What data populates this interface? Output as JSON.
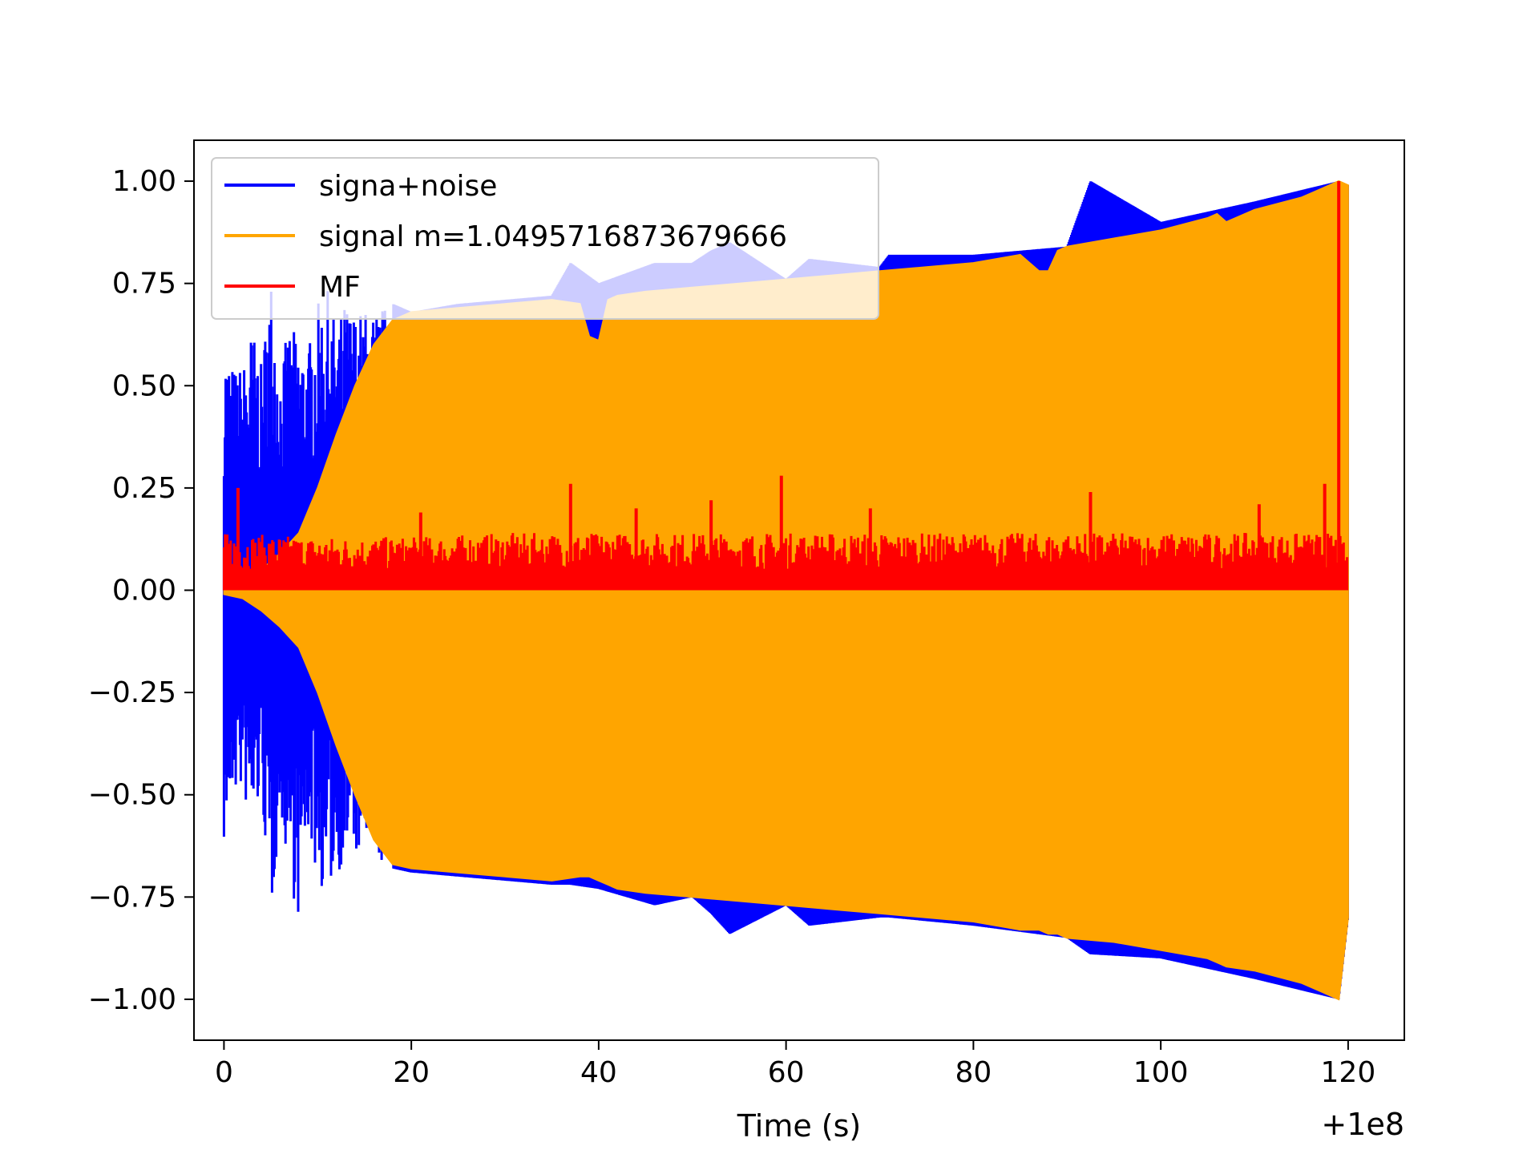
{
  "chart_data": {
    "type": "line",
    "title": "",
    "xlabel": "Time (s)",
    "ylabel": "",
    "x_offset_label": "+1e8",
    "xlim": [
      -3.2,
      126
    ],
    "ylim": [
      -1.1,
      1.1
    ],
    "x_ticks": [
      0,
      20,
      40,
      60,
      80,
      100,
      120
    ],
    "x_tick_labels": [
      "0",
      "20",
      "40",
      "60",
      "80",
      "100",
      "120"
    ],
    "y_ticks": [
      1.0,
      0.75,
      0.5,
      0.25,
      0.0,
      -0.25,
      -0.5,
      -0.75,
      -1.0
    ],
    "y_tick_labels": [
      "1.00",
      "0.75",
      "0.50",
      "0.25",
      "0.00",
      "−0.25",
      "−0.50",
      "−0.75",
      "−1.00"
    ],
    "grid": false,
    "legend_position": "top-left",
    "series": [
      {
        "name": "signa+noise",
        "color": "#0000ff",
        "kind": "noisy oscillation envelope",
        "x": [
          0,
          1,
          2,
          3,
          4,
          5,
          6,
          7,
          8,
          9,
          10,
          11,
          12,
          13,
          14,
          15,
          16,
          17,
          18,
          20,
          25,
          30,
          35,
          37,
          40,
          46,
          50,
          52,
          54,
          60,
          62.5,
          70,
          71,
          80,
          90,
          92.5,
          100,
          110,
          119,
          120
        ],
        "upper": [
          0.62,
          0.55,
          0.55,
          0.65,
          0.55,
          0.79,
          0.55,
          0.65,
          0.62,
          0.6,
          0.7,
          0.74,
          0.65,
          0.71,
          0.69,
          0.69,
          0.69,
          0.7,
          0.7,
          0.68,
          0.7,
          0.71,
          0.72,
          0.8,
          0.75,
          0.8,
          0.8,
          0.83,
          0.85,
          0.76,
          0.81,
          0.79,
          0.82,
          0.82,
          0.84,
          1.0,
          0.9,
          0.95,
          1.0,
          0.99
        ],
        "lower": [
          -0.63,
          -0.5,
          -0.5,
          -0.6,
          -0.5,
          -0.82,
          -0.55,
          -0.7,
          -0.82,
          -0.6,
          -0.72,
          -0.75,
          -0.7,
          -0.66,
          -0.66,
          -0.66,
          -0.67,
          -0.68,
          -0.68,
          -0.69,
          -0.7,
          -0.71,
          -0.72,
          -0.72,
          -0.73,
          -0.77,
          -0.75,
          -0.79,
          -0.84,
          -0.77,
          -0.82,
          -0.8,
          -0.8,
          -0.82,
          -0.85,
          -0.89,
          -0.9,
          -0.95,
          -1.0,
          -0.8
        ]
      },
      {
        "name": "signal m=1.0495716873679666",
        "color": "#ffa500",
        "kind": "oscillating chirp envelope",
        "x": [
          0,
          2,
          4,
          6,
          8,
          10,
          12,
          14,
          16,
          18,
          20,
          25,
          30,
          35,
          38,
          39,
          40,
          41,
          42,
          45,
          50,
          55,
          60,
          65,
          70,
          75,
          80,
          85,
          87,
          88,
          89,
          90,
          95,
          100,
          105,
          106,
          107,
          110,
          115,
          118,
          119,
          120
        ],
        "upper": [
          0.0,
          0.02,
          0.05,
          0.09,
          0.14,
          0.25,
          0.38,
          0.5,
          0.6,
          0.66,
          0.68,
          0.69,
          0.7,
          0.71,
          0.7,
          0.62,
          0.61,
          0.71,
          0.72,
          0.73,
          0.74,
          0.75,
          0.76,
          0.77,
          0.78,
          0.79,
          0.8,
          0.82,
          0.78,
          0.78,
          0.83,
          0.84,
          0.86,
          0.88,
          0.91,
          0.92,
          0.9,
          0.93,
          0.96,
          0.99,
          1.0,
          0.99
        ],
        "lower": [
          -0.01,
          -0.02,
          -0.05,
          -0.09,
          -0.14,
          -0.25,
          -0.38,
          -0.5,
          -0.61,
          -0.67,
          -0.68,
          -0.69,
          -0.7,
          -0.71,
          -0.7,
          -0.7,
          -0.71,
          -0.72,
          -0.73,
          -0.74,
          -0.75,
          -0.76,
          -0.77,
          -0.78,
          -0.79,
          -0.8,
          -0.81,
          -0.83,
          -0.83,
          -0.84,
          -0.84,
          -0.85,
          -0.86,
          -0.88,
          -0.9,
          -0.91,
          -0.92,
          -0.93,
          -0.96,
          -0.99,
          -1.0,
          -0.8
        ]
      },
      {
        "name": "MF",
        "color": "#ff0000",
        "kind": "matched filter output",
        "baseline_x": [
          0,
          10,
          20,
          30,
          40,
          50,
          60,
          70,
          80,
          90,
          100,
          110,
          119,
          120
        ],
        "baseline_high": [
          0.14,
          0.13,
          0.13,
          0.14,
          0.14,
          0.14,
          0.14,
          0.14,
          0.14,
          0.14,
          0.14,
          0.14,
          0.14,
          0.1
        ],
        "spikes": [
          {
            "x": 1.5,
            "y": 0.25
          },
          {
            "x": 21,
            "y": 0.19
          },
          {
            "x": 37,
            "y": 0.26
          },
          {
            "x": 44,
            "y": 0.2
          },
          {
            "x": 52,
            "y": 0.22
          },
          {
            "x": 59.5,
            "y": 0.28
          },
          {
            "x": 69,
            "y": 0.2
          },
          {
            "x": 92.5,
            "y": 0.24
          },
          {
            "x": 110.5,
            "y": 0.21
          },
          {
            "x": 117.5,
            "y": 0.26
          },
          {
            "x": 119,
            "y": 1.0
          }
        ]
      }
    ]
  }
}
